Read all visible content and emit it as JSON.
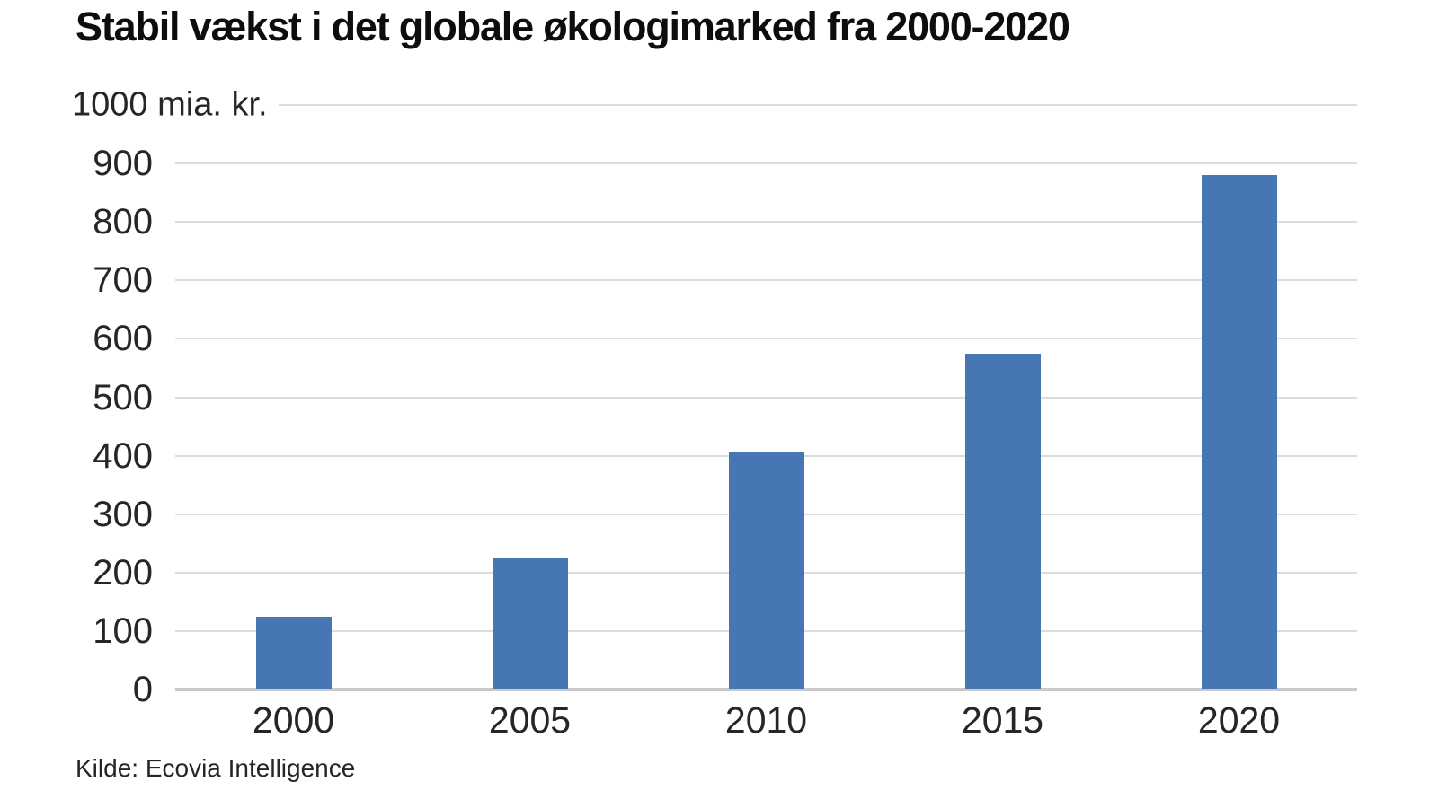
{
  "colors": {
    "bar": "#4677b4",
    "gridline": "#dcdcdc",
    "baseline": "#c9c9c9",
    "text": "#262626",
    "title_text": "#0d0d0d",
    "background": "#ffffff"
  },
  "chart_data": {
    "type": "bar",
    "title": "Stabil vækst i det globale økologimarked fra 2000-2020",
    "ylabel": "1000 mia. kr.",
    "xlabel": "",
    "categories": [
      "2000",
      "2005",
      "2010",
      "2015",
      "2020"
    ],
    "values": [
      125,
      225,
      405,
      575,
      880
    ],
    "ylim": [
      0,
      1000
    ],
    "ytick_step": 100,
    "yticks": [
      0,
      100,
      200,
      300,
      400,
      500,
      600,
      700,
      800,
      900
    ],
    "grid": true,
    "legend": "none",
    "source": "Kilde: Ecovia Intelligence"
  }
}
